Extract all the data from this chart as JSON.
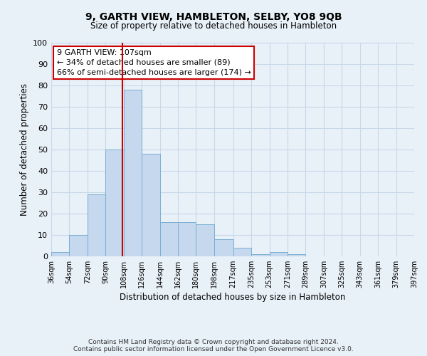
{
  "title": "9, GARTH VIEW, HAMBLETON, SELBY, YO8 9QB",
  "subtitle": "Size of property relative to detached houses in Hambleton",
  "xlabel": "Distribution of detached houses by size in Hambleton",
  "ylabel": "Number of detached properties",
  "bar_values": [
    2,
    10,
    29,
    50,
    78,
    48,
    16,
    16,
    15,
    8,
    4,
    1,
    2,
    1,
    0,
    0,
    0,
    0,
    0,
    0
  ],
  "bin_edges": [
    36,
    54,
    72,
    90,
    108,
    126,
    144,
    162,
    180,
    198,
    217,
    235,
    253,
    271,
    289,
    307,
    325,
    343,
    361,
    379,
    397
  ],
  "tick_labels": [
    "36sqm",
    "54sqm",
    "72sqm",
    "90sqm",
    "108sqm",
    "126sqm",
    "144sqm",
    "162sqm",
    "180sqm",
    "198sqm",
    "217sqm",
    "235sqm",
    "253sqm",
    "271sqm",
    "289sqm",
    "307sqm",
    "325sqm",
    "343sqm",
    "361sqm",
    "379sqm",
    "397sqm"
  ],
  "bar_color": "#c5d8ed",
  "bar_edge_color": "#7aafd4",
  "vline_x": 107,
  "vline_color": "#cc0000",
  "ylim": [
    0,
    100
  ],
  "annotation_text": "9 GARTH VIEW: 107sqm\n← 34% of detached houses are smaller (89)\n66% of semi-detached houses are larger (174) →",
  "annotation_box_color": "#ffffff",
  "annotation_box_edge": "#cc0000",
  "grid_color": "#c8d8e8",
  "background_color": "#e8f0f8",
  "footer1": "Contains HM Land Registry data © Crown copyright and database right 2024.",
  "footer2": "Contains public sector information licensed under the Open Government Licence v3.0."
}
